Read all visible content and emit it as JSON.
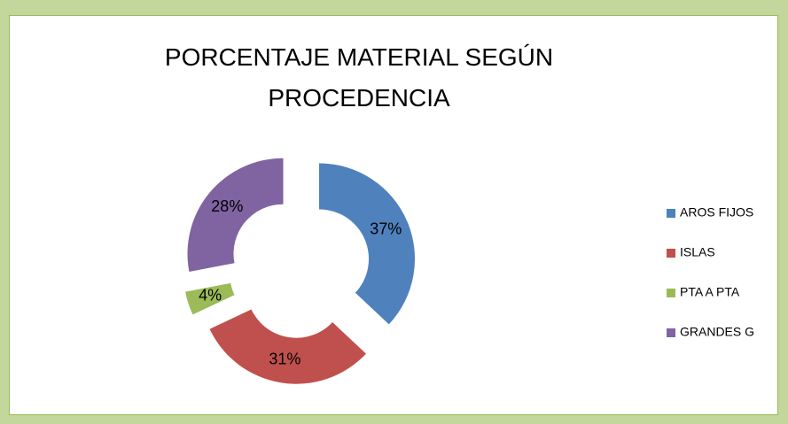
{
  "chart_data": {
    "type": "donut",
    "title": "PORCENTAJE MATERIAL SEGÚN PROCEDENCIA",
    "categories": [
      "AROS FIJOS",
      "ISLAS",
      "PTA A PTA",
      "GRANDES G"
    ],
    "values": [
      37,
      31,
      4,
      28
    ],
    "value_labels": [
      "37%",
      "31%",
      "4%",
      "28%"
    ],
    "colors": [
      "#4f81bd",
      "#c0504d",
      "#9bbb59",
      "#8064a2"
    ],
    "legend": "right"
  }
}
